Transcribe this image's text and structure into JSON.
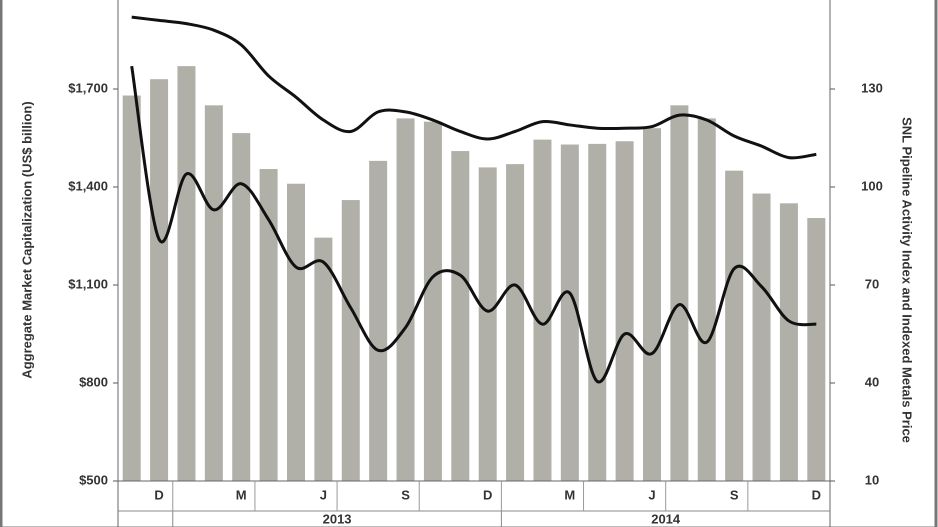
{
  "chart_data": {
    "type": "bar",
    "y_label": "Aggregate Market Capitalization (US$ billion)",
    "y2_label": "SNL Pipeline Activity Index and Indexed Metals Price",
    "categories": [
      null,
      "D",
      null,
      null,
      "M",
      null,
      null,
      "J",
      null,
      null,
      "S",
      null,
      null,
      "D",
      null,
      null,
      "M",
      null,
      null,
      "J",
      null,
      null,
      "S",
      null,
      null,
      "D"
    ],
    "year_labels": [
      "2013",
      "2014"
    ],
    "ylim": [
      500,
      1950
    ],
    "yticks": [
      {
        "value": 500,
        "label": "$500"
      },
      {
        "value": 800,
        "label": "$800"
      },
      {
        "value": 1100,
        "label": "$1,100"
      },
      {
        "value": 1400,
        "label": "$1,400"
      },
      {
        "value": 1700,
        "label": "$1,700"
      }
    ],
    "y2lim": [
      10,
      155
    ],
    "y2ticks": [
      10,
      40,
      70,
      100,
      130
    ],
    "series": [
      {
        "type": "bar",
        "color": "#b0afa8",
        "values": [
          1680,
          1730,
          1770,
          1650,
          1565,
          1455,
          1410,
          1245,
          1360,
          1480,
          1610,
          1600,
          1510,
          1460,
          1470,
          1545,
          1530,
          1532,
          1540,
          1580,
          1650,
          1610,
          1450,
          1380,
          1350,
          1305
        ]
      },
      {
        "type": "line",
        "axis": "y2",
        "color": "#111111",
        "values": [
          152,
          151,
          150,
          148,
          143.5,
          134,
          127.5,
          120.5,
          117,
          123,
          123,
          120.5,
          117,
          114.7,
          117,
          120,
          119,
          118,
          118,
          118.5,
          122,
          120.5,
          115.6,
          112.5,
          109,
          110
        ]
      },
      {
        "type": "line",
        "axis": "y2",
        "color": "#111111",
        "values": [
          137,
          84,
          104,
          93,
          101,
          90,
          75.5,
          77,
          63,
          50,
          57,
          72.5,
          73,
          62,
          70,
          58,
          67.5,
          40.5,
          55,
          49,
          64,
          52.5,
          75,
          69.5,
          59,
          58
        ]
      }
    ]
  }
}
